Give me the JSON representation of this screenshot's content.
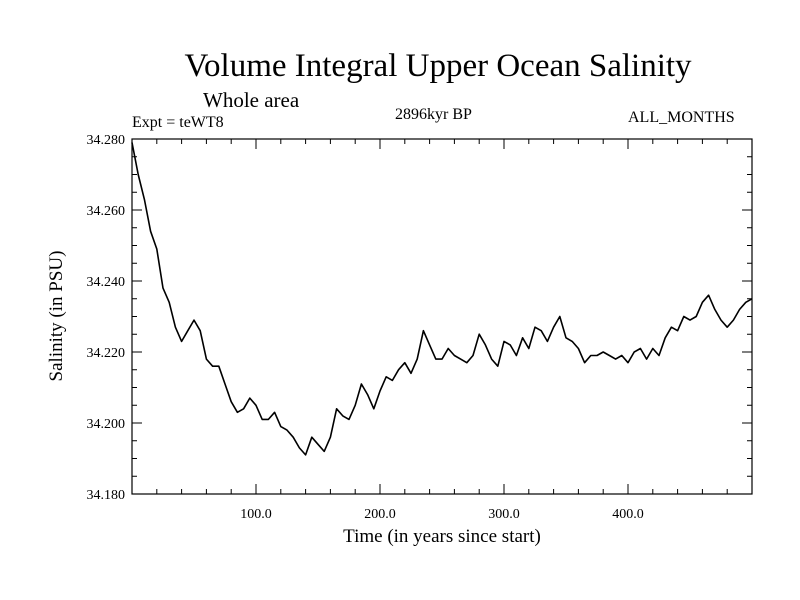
{
  "header": {
    "title": "Volume Integral Upper Ocean Salinity",
    "subtitle": "Whole area",
    "experiment": "Expt = teWT8",
    "period": "2896kyr BP",
    "months": "ALL_MONTHS"
  },
  "chart_data": {
    "type": "line",
    "title": "Volume Integral Upper Ocean Salinity",
    "xlabel": "Time (in years since start)",
    "ylabel": "Salinity (in PSU)",
    "xlim": [
      0,
      500
    ],
    "ylim": [
      34.18,
      34.28
    ],
    "xticks": [
      100,
      200,
      300,
      400
    ],
    "xtick_labels": [
      "100.0",
      "200.0",
      "300.0",
      "400.0"
    ],
    "yticks": [
      34.18,
      34.2,
      34.22,
      34.24,
      34.26,
      34.28
    ],
    "ytick_labels": [
      "34.180",
      "34.200",
      "34.220",
      "34.240",
      "34.260",
      "34.280"
    ],
    "grid": false,
    "series": [
      {
        "name": "Salinity",
        "color": "#000000",
        "x": [
          0,
          5,
          10,
          15,
          20,
          25,
          30,
          35,
          40,
          45,
          50,
          55,
          60,
          65,
          70,
          75,
          80,
          85,
          90,
          95,
          100,
          105,
          110,
          115,
          120,
          125,
          130,
          135,
          140,
          145,
          150,
          155,
          160,
          165,
          170,
          175,
          180,
          185,
          190,
          195,
          200,
          205,
          210,
          215,
          220,
          225,
          230,
          235,
          240,
          245,
          250,
          255,
          260,
          265,
          270,
          275,
          280,
          285,
          290,
          295,
          300,
          305,
          310,
          315,
          320,
          325,
          330,
          335,
          340,
          345,
          350,
          355,
          360,
          365,
          370,
          375,
          380,
          385,
          390,
          395,
          400,
          405,
          410,
          415,
          420,
          425,
          430,
          435,
          440,
          445,
          450,
          455,
          460,
          465,
          470,
          475,
          480,
          485,
          490,
          495,
          500
        ],
        "values": [
          34.279,
          34.27,
          34.263,
          34.254,
          34.249,
          34.238,
          34.234,
          34.227,
          34.223,
          34.226,
          34.229,
          34.226,
          34.218,
          34.216,
          34.216,
          34.211,
          34.206,
          34.203,
          34.204,
          34.207,
          34.205,
          34.201,
          34.201,
          34.203,
          34.199,
          34.198,
          34.196,
          34.193,
          34.191,
          34.196,
          34.194,
          34.192,
          34.196,
          34.204,
          34.202,
          34.201,
          34.205,
          34.211,
          34.208,
          34.204,
          34.209,
          34.213,
          34.212,
          34.215,
          34.217,
          34.214,
          34.218,
          34.226,
          34.222,
          34.218,
          34.218,
          34.221,
          34.219,
          34.218,
          34.217,
          34.219,
          34.225,
          34.222,
          34.218,
          34.216,
          34.223,
          34.222,
          34.219,
          34.224,
          34.221,
          34.227,
          34.226,
          34.223,
          34.227,
          34.23,
          34.224,
          34.223,
          34.221,
          34.217,
          34.219,
          34.219,
          34.22,
          34.219,
          34.218,
          34.219,
          34.217,
          34.22,
          34.221,
          34.218,
          34.221,
          34.219,
          34.224,
          34.227,
          34.226,
          34.23,
          34.229,
          34.23,
          34.234,
          34.236,
          34.232,
          34.229,
          34.227,
          34.229,
          34.232,
          34.234,
          34.235
        ]
      }
    ]
  }
}
